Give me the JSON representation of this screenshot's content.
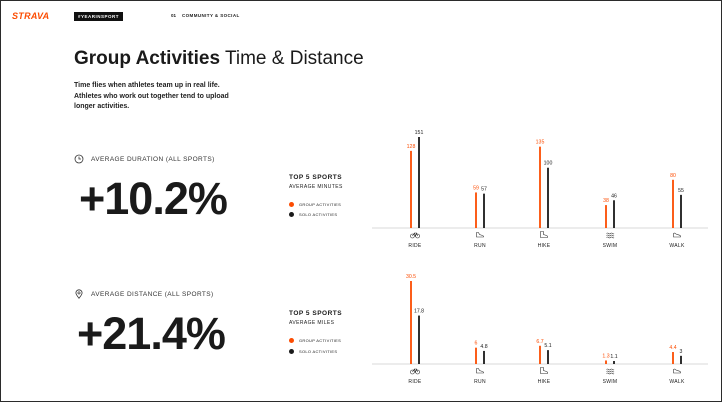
{
  "brand": {
    "logo": "STRAVA",
    "tag": "#YEARINSPORT",
    "section_number": "01",
    "section_name": "COMMUNITY & SOCIAL"
  },
  "title": {
    "bold": "Group Activities",
    "light": "Time & Distance"
  },
  "intro": "Time flies when athletes team up in real life. Athletes who work out together tend to upload longer activities.",
  "colors": {
    "group": "#fc4c02",
    "solo": "#1a1a1a",
    "brand": "#fc4c02"
  },
  "metrics": [
    {
      "label": "AVERAGE DURATION (ALL SPORTS)",
      "value": "+10.2%",
      "icon": "clock-icon"
    },
    {
      "label": "AVERAGE DISTANCE (ALL SPORTS)",
      "value": "+21.4%",
      "icon": "map-pin-icon"
    }
  ],
  "legend": {
    "group": "GROUP ACTIVITIES",
    "solo": "SOLO ACTIVITIES"
  },
  "chart_data": [
    {
      "type": "bar",
      "title": "TOP 5 SPORTS",
      "subtitle": "AVERAGE MINUTES",
      "categories": [
        "RIDE",
        "RUN",
        "HIKE",
        "SWIM",
        "WALK"
      ],
      "icons": [
        "bike-icon",
        "shoe-icon",
        "boot-icon",
        "swim-icon",
        "walk-shoe-icon"
      ],
      "series": [
        {
          "name": "GROUP ACTIVITIES",
          "values": [
            128,
            59,
            135,
            38,
            80
          ],
          "labels": [
            "128",
            "59",
            "135",
            "38",
            "80"
          ]
        },
        {
          "name": "SOLO ACTIVITIES",
          "values": [
            151,
            57,
            100,
            46,
            55
          ],
          "labels": [
            "151",
            "57",
            "100",
            "46",
            "55"
          ]
        }
      ],
      "ylim": [
        0,
        151
      ],
      "grid": false,
      "legend_placement": "left"
    },
    {
      "type": "bar",
      "title": "TOP 5 SPORTS",
      "subtitle": "AVERAGE MILES",
      "categories": [
        "RIDE",
        "RUN",
        "HIKE",
        "SWIM",
        "WALK"
      ],
      "icons": [
        "bike-icon",
        "shoe-icon",
        "boot-icon",
        "swim-icon",
        "walk-shoe-icon"
      ],
      "series": [
        {
          "name": "GROUP ACTIVITIES",
          "values": [
            30.5,
            6,
            6.7,
            1.3,
            4.4
          ],
          "labels": [
            "30.5",
            "6",
            "6.7",
            "1.3",
            "4.4"
          ]
        },
        {
          "name": "SOLO ACTIVITIES",
          "values": [
            17.8,
            4.8,
            5.1,
            1.1,
            3
          ],
          "labels": [
            "17.8",
            "4.8",
            "5.1",
            "1.1",
            "3"
          ]
        }
      ],
      "ylim": [
        0,
        30.5
      ],
      "grid": false,
      "legend_placement": "left"
    }
  ]
}
